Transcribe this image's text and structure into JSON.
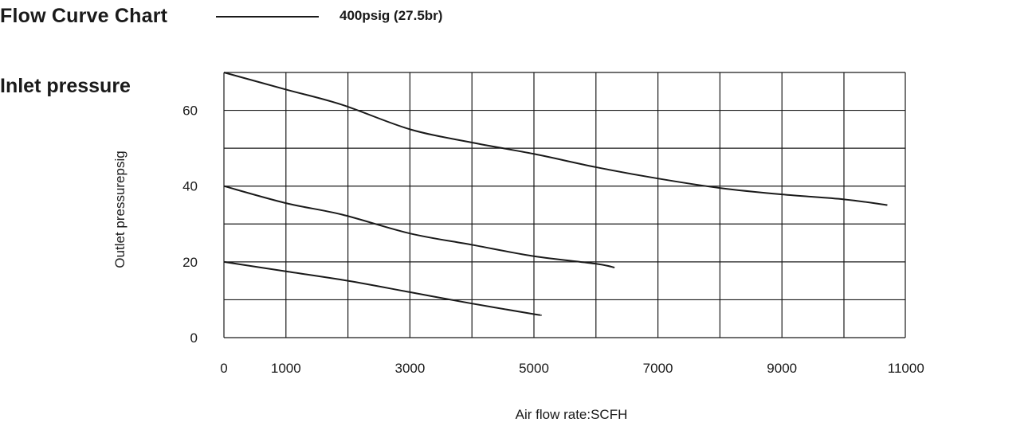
{
  "header": {
    "title": "Flow Curve Chart",
    "legend_label": "400psig (27.5br)",
    "inlet_label": "Inlet pressure"
  },
  "chart_data": {
    "type": "line",
    "xlabel": "Air flow rate:SCFH",
    "ylabel": "Outlet pressurepsig",
    "xlim": [
      0,
      11000
    ],
    "ylim": [
      0,
      70
    ],
    "x_ticks": [
      "0",
      "1000",
      "3000",
      "5000",
      "7000",
      "9000",
      "11000"
    ],
    "y_ticks": [
      "0",
      "20",
      "40",
      "60"
    ],
    "grid": true,
    "legend_placement": "top",
    "series": [
      {
        "x": [
          0,
          1000,
          1900,
          3000,
          4000,
          5000,
          6000,
          7000,
          8000,
          9000,
          10000,
          10700
        ],
        "values": [
          70,
          65.5,
          61.5,
          55,
          51.5,
          48.5,
          45,
          42,
          39.5,
          37.8,
          36.5,
          35
        ]
      },
      {
        "x": [
          0,
          1000,
          1900,
          3000,
          4000,
          5000,
          6000,
          6300
        ],
        "values": [
          40,
          35.5,
          32.5,
          27.5,
          24.5,
          21.5,
          19.5,
          18.5
        ]
      },
      {
        "x": [
          0,
          1000,
          2000,
          3000,
          4000,
          5000,
          5100
        ],
        "values": [
          20,
          17.5,
          15,
          12,
          9,
          6.2,
          6
        ]
      }
    ],
    "line_color": "#1a1a1a"
  }
}
